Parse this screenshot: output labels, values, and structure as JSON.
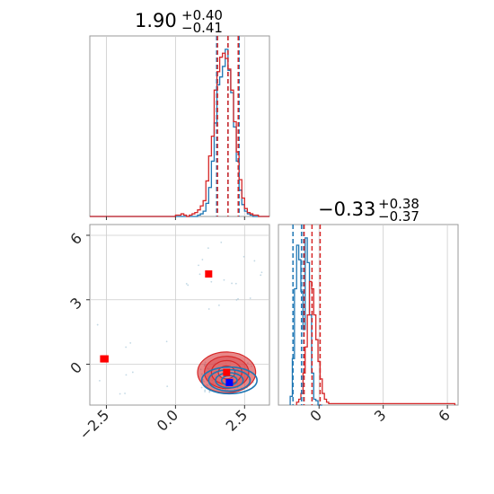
{
  "chart_data": [
    {
      "type": "histogram",
      "panel": "marginal-x",
      "title": {
        "value": "1.90",
        "plus": "+0.40",
        "minus": "−0.41"
      },
      "xlim": [
        -3.1,
        3.4
      ],
      "bin_edges_start": -3.1,
      "bin_width": 0.1,
      "series": [
        {
          "name": "",
          "color": "#1f77b4",
          "values": [
            0,
            0,
            0,
            0,
            0,
            0,
            0,
            0,
            0,
            0,
            0,
            0,
            0,
            0,
            0,
            0,
            0,
            0,
            0,
            0,
            0,
            0,
            0,
            0,
            0,
            0,
            0,
            0,
            0,
            0,
            0,
            0,
            0,
            0,
            0,
            0,
            0,
            0,
            0,
            1,
            2,
            4,
            10,
            22,
            42,
            71,
            100,
            106,
            114,
            127,
            111,
            94,
            68,
            42,
            20,
            9,
            4,
            2,
            1,
            0,
            0,
            0,
            0,
            0,
            0
          ]
        },
        {
          "name": "",
          "color": "#d62728",
          "values": [
            0,
            0,
            0,
            0,
            0,
            0,
            0,
            0,
            0,
            0,
            0,
            0,
            0,
            0,
            0,
            0,
            0,
            0,
            0,
            0,
            0,
            0,
            0,
            0,
            0,
            0,
            0,
            0,
            0,
            0,
            0,
            1,
            1,
            2,
            1,
            0,
            1,
            2,
            3,
            5,
            8,
            12,
            27,
            46,
            61,
            96,
            110,
            121,
            124,
            120,
            112,
            96,
            72,
            49,
            28,
            14,
            6,
            3,
            2,
            1,
            1,
            0,
            0,
            0,
            0
          ]
        }
      ],
      "quantiles_blue": [
        1.49,
        1.9,
        2.3
      ],
      "quantiles_red": [
        1.52,
        1.9,
        2.27
      ]
    },
    {
      "type": "histogram",
      "panel": "marginal-y",
      "title": {
        "value": "−0.33",
        "plus": "+0.38",
        "minus": "−0.37"
      },
      "xlim": [
        -1.9,
        6.5
      ],
      "xticks": [
        0,
        3,
        6
      ],
      "xtick_labels": [
        "0",
        "3",
        "6"
      ],
      "series": [
        {
          "name": "",
          "color": "#1f77b4",
          "x": [
            -1.3,
            -1.2,
            -1.1,
            -1.0,
            -0.9,
            -0.8,
            -0.7,
            -0.6,
            -0.5,
            -0.4,
            -0.3,
            -0.2,
            -0.1,
            0.0,
            0.1
          ],
          "values": [
            6,
            32,
            80,
            110,
            100,
            78,
            52,
            115,
            98,
            62,
            22,
            4,
            3,
            0,
            0
          ]
        },
        {
          "name": "",
          "color": "#d62728",
          "x": [
            -1.0,
            -0.9,
            -0.8,
            -0.7,
            -0.6,
            -0.5,
            -0.4,
            -0.3,
            -0.2,
            -0.1,
            0.0,
            0.1,
            0.2,
            0.3,
            0.4,
            0.5,
            0.6,
            0.7,
            1.0,
            3.0,
            6.3
          ],
          "values": [
            2,
            4,
            8,
            22,
            40,
            62,
            85,
            80,
            62,
            45,
            30,
            18,
            8,
            4,
            2,
            1,
            1,
            1,
            1,
            1,
            1
          ]
        }
      ],
      "quantiles_blue": [
        -1.22,
        -0.82,
        -0.72
      ],
      "quantiles_red": [
        -0.7,
        -0.33,
        0.05
      ]
    },
    {
      "type": "scatter",
      "panel": "joint",
      "xlim": [
        -3.1,
        3.4
      ],
      "ylim": [
        -1.9,
        6.5
      ],
      "xticks": [
        -2.5,
        0.0,
        2.5
      ],
      "xtick_labels": [
        "−2.5",
        "0.0",
        "2.5"
      ],
      "yticks": [
        0,
        3,
        6
      ],
      "ytick_labels": [
        "0",
        "3",
        "6"
      ],
      "markers": [
        {
          "x": -2.55,
          "y": 0.25,
          "color": "#ff0000"
        },
        {
          "x": -2.6,
          "y": 0.25,
          "color": "#ff0000"
        },
        {
          "x": 1.2,
          "y": 4.2,
          "color": "#ff0000"
        },
        {
          "x": 1.85,
          "y": -0.38,
          "color": "#ff0000"
        },
        {
          "x": 1.95,
          "y": -0.85,
          "color": "#0000ff"
        }
      ],
      "contours_blue": {
        "center": [
          1.95,
          -0.75
        ],
        "radii": [
          [
            0.28,
            0.22
          ],
          [
            0.5,
            0.35
          ],
          [
            0.75,
            0.5
          ],
          [
            1.0,
            0.62
          ]
        ]
      },
      "contours_red": {
        "center": [
          1.85,
          -0.38
        ],
        "radii": [
          [
            0.3,
            0.3
          ],
          [
            0.55,
            0.55
          ],
          [
            0.8,
            0.75
          ],
          [
            1.05,
            0.95
          ]
        ]
      },
      "scatter_points_count": 120
    }
  ]
}
